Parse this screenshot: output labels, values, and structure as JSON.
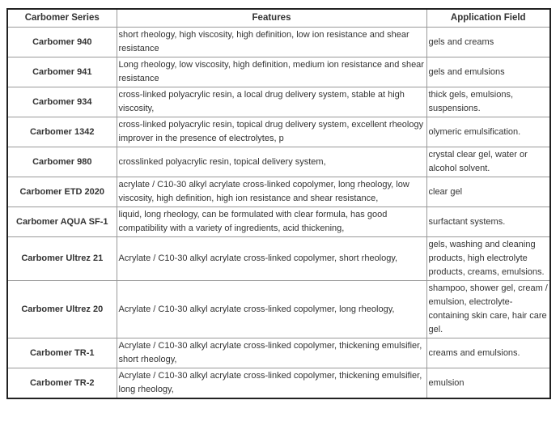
{
  "colors": {
    "text": "#333333",
    "border_outer": "#222222",
    "border_inner": "#999999",
    "background": "#ffffff"
  },
  "table": {
    "columns": [
      {
        "key": "series",
        "label": "Carbomer Series"
      },
      {
        "key": "features",
        "label": "Features"
      },
      {
        "key": "application",
        "label": "Application Field"
      }
    ],
    "rows": [
      {
        "series": "Carbomer 940",
        "features": "short rheology, high viscosity, high definition, low ion resistance and shear resistance",
        "application": "gels and creams"
      },
      {
        "series": "Carbomer 941",
        "features": "Long rheology, low viscosity, high definition, medium ion resistance and shear resistance",
        "application": "gels and emulsions"
      },
      {
        "series": "Carbomer 934",
        "features": "cross-linked polyacrylic resin, a local drug delivery system, stable at high viscosity,",
        "application": "thick gels, emulsions, suspensions."
      },
      {
        "series": "Carbomer 1342",
        "features": "cross-linked polyacrylic resin, topical drug delivery system, excellent rheology improver in the presence of electrolytes, p",
        "application": "olymeric emulsification."
      },
      {
        "series": "Carbomer 980",
        "features": "crosslinked polyacrylic resin, topical delivery system,",
        "application": "crystal clear gel, water or alcohol solvent."
      },
      {
        "series": "Carbomer ETD 2020",
        "features": "acrylate / C10-30 alkyl acrylate cross-linked copolymer, long rheology, low viscosity, high definition, high ion resistance and shear resistance,",
        "application": "clear gel"
      },
      {
        "series": "Carbomer AQUA SF-1",
        "features": "liquid, long rheology, can be formulated with clear formula, has good compatibility with a variety of ingredients, acid thickening,",
        "application": "surfactant systems."
      },
      {
        "series": "Carbomer Ultrez 21",
        "features": "Acrylate / C10-30 alkyl acrylate cross-linked copolymer, short rheology,",
        "application": "gels, washing and cleaning products, high electrolyte products, creams, emulsions."
      },
      {
        "series": "Carbomer Ultrez 20",
        "features": "Acrylate / C10-30 alkyl acrylate cross-linked copolymer, long rheology,",
        "application": "shampoo, shower gel, cream / emulsion, electrolyte-containing skin care, hair care gel."
      },
      {
        "series": "Carbomer TR-1",
        "features": "Acrylate / C10-30 alkyl acrylate cross-linked copolymer, thickening emulsifier, short rheology,",
        "application": "creams and emulsions."
      },
      {
        "series": "Carbomer TR-2",
        "features": "Acrylate / C10-30 alkyl acrylate cross-linked copolymer, thickening emulsifier, long rheology,",
        "application": "emulsion"
      }
    ]
  }
}
